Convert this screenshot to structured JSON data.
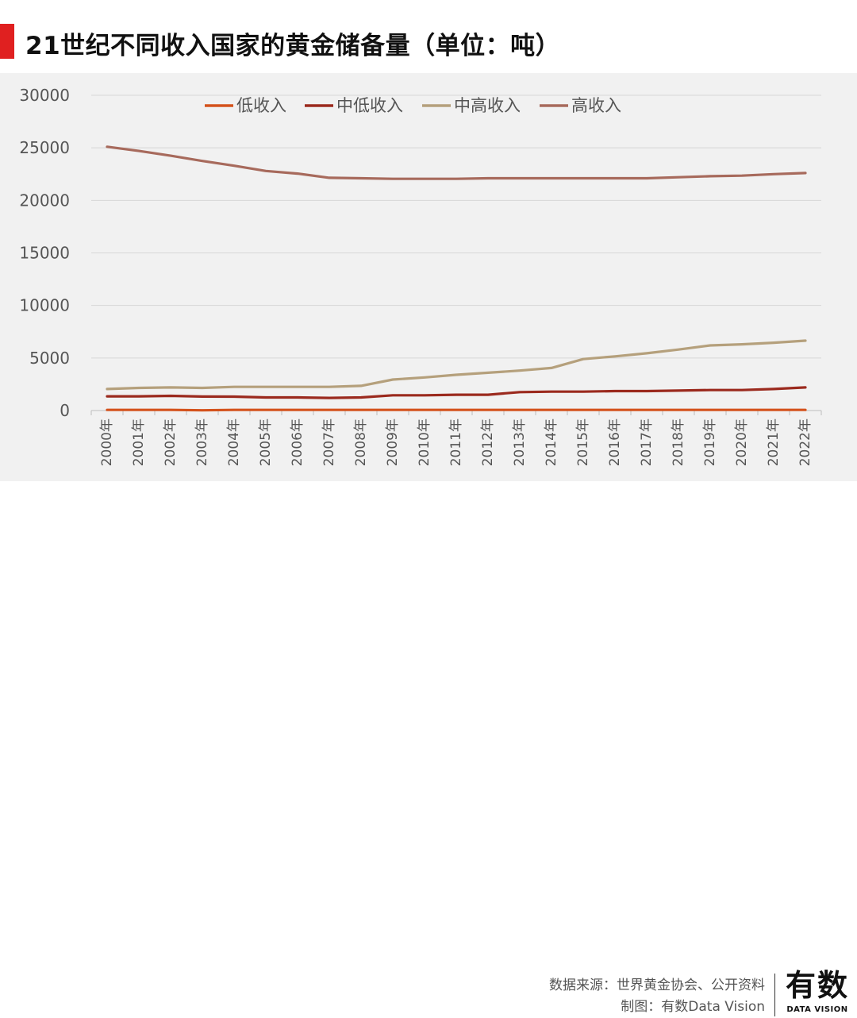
{
  "header": {
    "title": "21世纪不同收入国家的黄金储备量（单位：吨）",
    "accent_color": "#e02020"
  },
  "footer": {
    "source_line": "数据来源：世界黄金协会、公开资料",
    "credit_line": "制图：有数Data Vision",
    "logo_main": "有数",
    "logo_sub": "DATA VISION"
  },
  "chart_data": {
    "type": "line",
    "title": "21世纪不同收入国家的黄金储备量（单位：吨）",
    "xlabel": "",
    "ylabel": "",
    "ylim": [
      0,
      30000
    ],
    "yticks": [
      "0",
      "5000",
      "10000",
      "15000",
      "20000",
      "25000",
      "30000"
    ],
    "grid": true,
    "legend_position": "top",
    "categories": [
      "2000年",
      "2001年",
      "2002年",
      "2003年",
      "2004年",
      "2005年",
      "2006年",
      "2007年",
      "2008年",
      "2009年",
      "2010年",
      "2011年",
      "2012年",
      "2013年",
      "2014年",
      "2015年",
      "2016年",
      "2017年",
      "2018年",
      "2019年",
      "2020年",
      "2021年",
      "2022年"
    ],
    "series": [
      {
        "name": "低收入",
        "color": "#d4521c",
        "values": [
          60,
          60,
          60,
          20,
          60,
          60,
          60,
          60,
          60,
          60,
          60,
          60,
          60,
          60,
          60,
          60,
          60,
          60,
          60,
          60,
          60,
          60,
          60
        ]
      },
      {
        "name": "中低收入",
        "color": "#9b2a1e",
        "values": [
          1350,
          1350,
          1400,
          1330,
          1320,
          1250,
          1250,
          1200,
          1250,
          1450,
          1450,
          1500,
          1500,
          1750,
          1800,
          1800,
          1850,
          1850,
          1900,
          1950,
          1950,
          2050,
          2200
        ]
      },
      {
        "name": "中高收入",
        "color": "#b5a07c",
        "values": [
          2050,
          2150,
          2200,
          2150,
          2250,
          2250,
          2250,
          2250,
          2350,
          2950,
          3150,
          3400,
          3600,
          3800,
          4050,
          4900,
          5150,
          5450,
          5800,
          6200,
          6300,
          6450,
          6650
        ]
      },
      {
        "name": "高收入",
        "color": "#a76a5c",
        "values": [
          25100,
          24700,
          24250,
          23750,
          23300,
          22800,
          22550,
          22150,
          22100,
          22050,
          22050,
          22050,
          22100,
          22100,
          22100,
          22100,
          22100,
          22100,
          22200,
          22300,
          22350,
          22500,
          22600
        ]
      }
    ]
  }
}
